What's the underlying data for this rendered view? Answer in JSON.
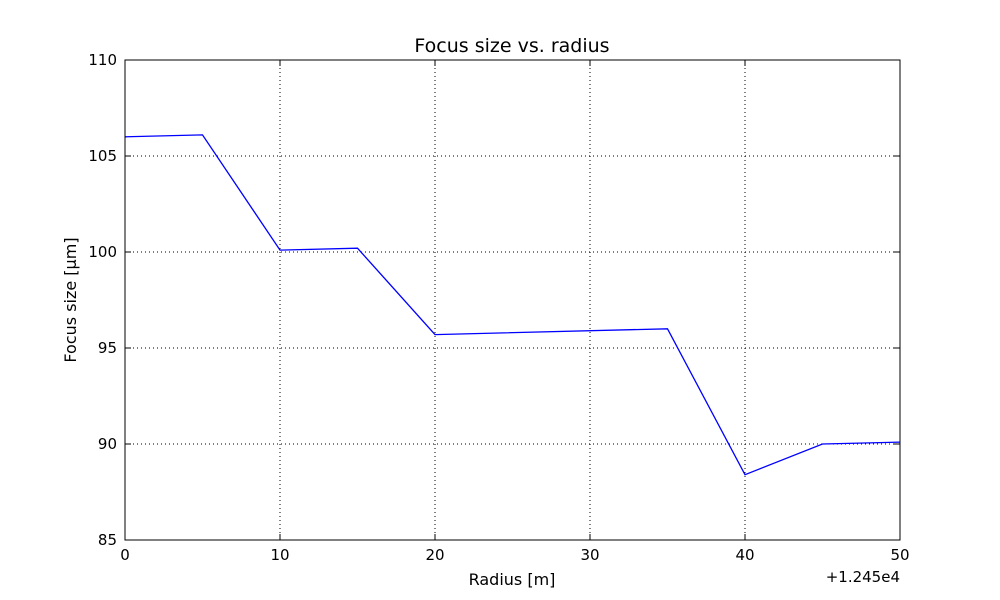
{
  "chart_data": {
    "type": "line",
    "title": "Focus size vs. radius",
    "xlabel": "Radius [m]",
    "ylabel": "Focus size [µm]",
    "x_offset_label": "+1.245e4",
    "xlim": [
      0,
      50
    ],
    "ylim": [
      85,
      110
    ],
    "x_ticks": [
      "0",
      "10",
      "20",
      "30",
      "40",
      "50"
    ],
    "y_ticks": [
      "85",
      "90",
      "95",
      "100",
      "105",
      "110"
    ],
    "grid": true,
    "series": [
      {
        "color": "#0000ff",
        "x": [
          0,
          5,
          10,
          15,
          20,
          35,
          40,
          45,
          50
        ],
        "y": [
          106.0,
          106.1,
          100.1,
          100.2,
          95.7,
          96.0,
          88.4,
          90.0,
          90.1
        ]
      }
    ]
  }
}
